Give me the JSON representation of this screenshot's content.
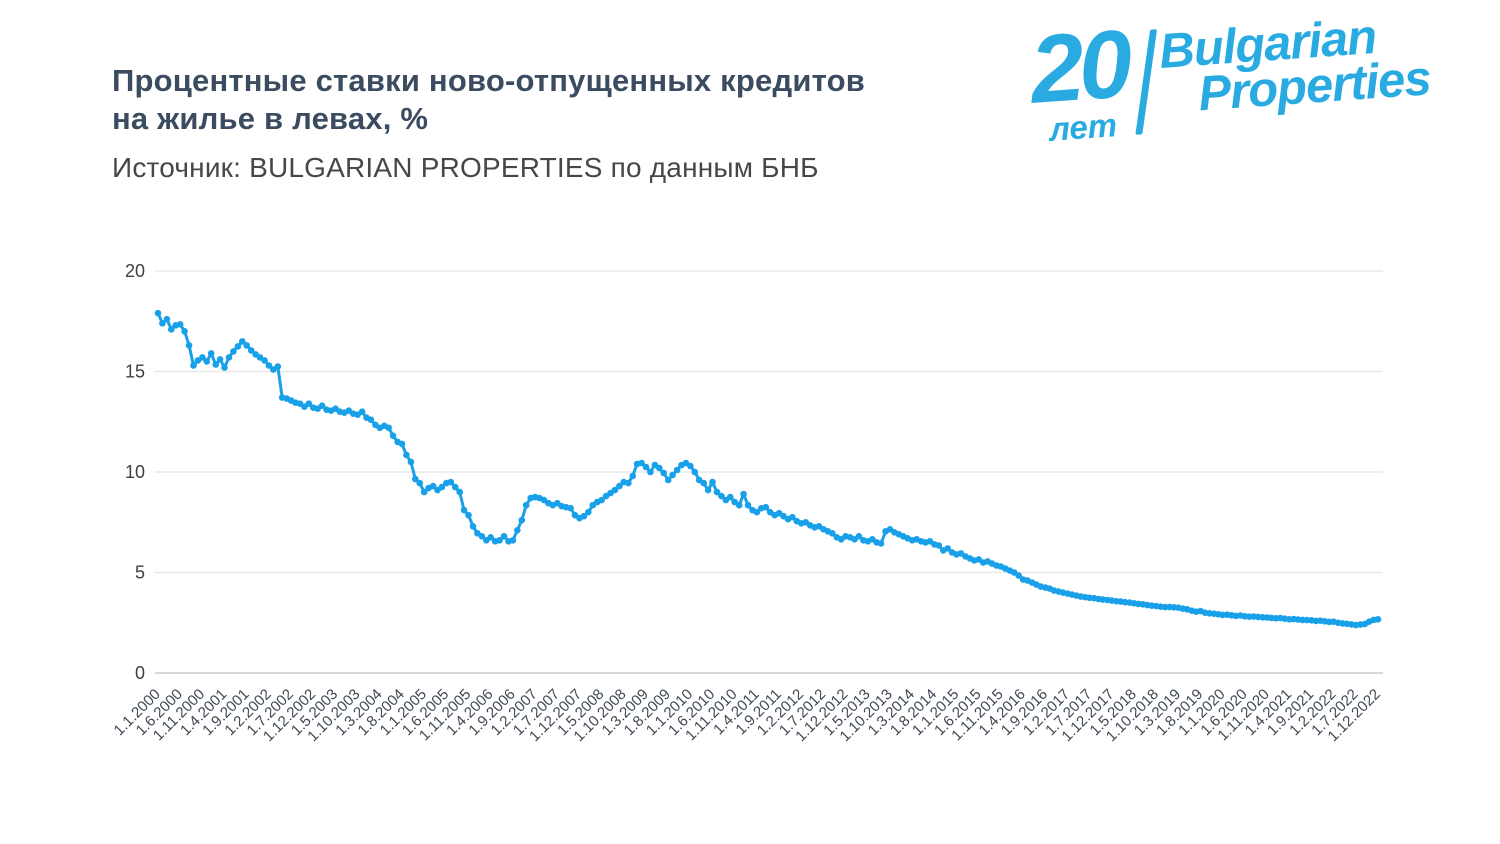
{
  "header": {
    "title_line1": "Процентные ставки ново-отпущенных кредитов",
    "title_line2": "на жилье в левах, %",
    "source": "Источник: BULGARIAN PROPERTIES по данным БНБ"
  },
  "logo": {
    "number": "20",
    "years_word": "лет",
    "brand_line1": "Bulgarian",
    "brand_line2": "Properties",
    "color": "#29abe2"
  },
  "chart_data": {
    "type": "line",
    "title": "Процентные ставки ново-отпущенных кредитов на жилье в левах, %",
    "xlabel": "",
    "ylabel": "",
    "x_frequency": "monthly",
    "x_start": "1.1.2000",
    "x_end": "1.12.2022",
    "x_tick_every_n_months": 5,
    "x_tick_labels": [
      "1.1.2000",
      "1.6.2000",
      "1.11.2000",
      "1.4.2001",
      "1.9.2001",
      "1.2.2002",
      "1.7.2002",
      "1.12.2002",
      "1.5.2003",
      "1.10.2003",
      "1.3.2004",
      "1.8.2004",
      "1.1.2005",
      "1.6.2005",
      "1.11.2005",
      "1.4.2006",
      "1.9.2006",
      "1.2.2007",
      "1.7.2007",
      "1.12.2007",
      "1.5.2008",
      "1.10.2008",
      "1.3.2009",
      "1.8.2009",
      "1.1.2010",
      "1.6.2010",
      "1.11.2010",
      "1.4.2011",
      "1.9.2011",
      "1.2.2012",
      "1.7.2012",
      "1.12.2012",
      "1.5.2013",
      "1.10.2013",
      "1.3.2014",
      "1.8.2014",
      "1.1.2015",
      "1.6.2015",
      "1.11.2015",
      "1.4.2016",
      "1.9.2016",
      "1.2.2017",
      "1.7.2017",
      "1.12.2017",
      "1.5.2018",
      "1.10.2018",
      "1.3.2019",
      "1.8.2019",
      "1.1.2020",
      "1.6.2020",
      "1.11.2020",
      "1.4.2021",
      "1.9.2021",
      "1.2.2022",
      "1.7.2022",
      "1.12.2022"
    ],
    "y_ticks": [
      0,
      5,
      10,
      15,
      20
    ],
    "ylim": [
      0,
      20
    ],
    "grid": "horizontal",
    "legend": "none",
    "line_color": "#18a0e8",
    "marker": "circle",
    "values": [
      17.9,
      17.4,
      17.6,
      17.1,
      17.3,
      17.35,
      17.0,
      16.3,
      15.3,
      15.55,
      15.7,
      15.5,
      15.9,
      15.35,
      15.6,
      15.2,
      15.7,
      16.0,
      16.25,
      16.5,
      16.3,
      16.05,
      15.85,
      15.7,
      15.55,
      15.3,
      15.1,
      15.25,
      13.7,
      13.65,
      13.55,
      13.45,
      13.4,
      13.25,
      13.4,
      13.2,
      13.15,
      13.3,
      13.1,
      13.05,
      13.15,
      13.0,
      12.95,
      13.05,
      12.9,
      12.85,
      13.0,
      12.7,
      12.6,
      12.35,
      12.2,
      12.3,
      12.2,
      11.8,
      11.5,
      11.4,
      10.85,
      10.5,
      9.65,
      9.45,
      9.0,
      9.2,
      9.3,
      9.1,
      9.25,
      9.45,
      9.5,
      9.25,
      9.0,
      8.1,
      7.85,
      7.3,
      6.95,
      6.8,
      6.6,
      6.75,
      6.55,
      6.6,
      6.8,
      6.55,
      6.6,
      7.1,
      7.6,
      8.35,
      8.7,
      8.75,
      8.7,
      8.6,
      8.45,
      8.35,
      8.45,
      8.3,
      8.25,
      8.2,
      7.85,
      7.7,
      7.8,
      8.0,
      8.35,
      8.5,
      8.6,
      8.8,
      8.95,
      9.1,
      9.3,
      9.5,
      9.45,
      9.8,
      10.4,
      10.45,
      10.25,
      10.0,
      10.35,
      10.2,
      9.95,
      9.6,
      9.85,
      10.1,
      10.35,
      10.45,
      10.3,
      10.0,
      9.6,
      9.45,
      9.1,
      9.5,
      9.0,
      8.8,
      8.6,
      8.75,
      8.5,
      8.35,
      8.9,
      8.35,
      8.1,
      8.0,
      8.2,
      8.25,
      8.0,
      7.85,
      7.95,
      7.8,
      7.65,
      7.75,
      7.55,
      7.45,
      7.5,
      7.35,
      7.25,
      7.3,
      7.15,
      7.05,
      6.95,
      6.75,
      6.65,
      6.8,
      6.75,
      6.65,
      6.8,
      6.6,
      6.55,
      6.65,
      6.5,
      6.45,
      7.05,
      7.15,
      7.0,
      6.9,
      6.8,
      6.7,
      6.6,
      6.65,
      6.55,
      6.5,
      6.55,
      6.4,
      6.35,
      6.1,
      6.2,
      6.0,
      5.9,
      5.95,
      5.8,
      5.7,
      5.6,
      5.65,
      5.5,
      5.55,
      5.45,
      5.35,
      5.3,
      5.2,
      5.1,
      5.0,
      4.85,
      4.65,
      4.6,
      4.5,
      4.4,
      4.3,
      4.25,
      4.2,
      4.1,
      4.05,
      4.0,
      3.95,
      3.9,
      3.85,
      3.8,
      3.77,
      3.74,
      3.72,
      3.68,
      3.65,
      3.63,
      3.6,
      3.57,
      3.55,
      3.52,
      3.5,
      3.47,
      3.44,
      3.42,
      3.38,
      3.35,
      3.33,
      3.3,
      3.28,
      3.28,
      3.27,
      3.25,
      3.2,
      3.17,
      3.1,
      3.05,
      3.08,
      3.0,
      2.97,
      2.95,
      2.92,
      2.89,
      2.9,
      2.87,
      2.84,
      2.86,
      2.82,
      2.8,
      2.81,
      2.79,
      2.77,
      2.76,
      2.74,
      2.72,
      2.73,
      2.7,
      2.67,
      2.68,
      2.66,
      2.64,
      2.63,
      2.62,
      2.59,
      2.6,
      2.57,
      2.54,
      2.55,
      2.5,
      2.47,
      2.45,
      2.42,
      2.39,
      2.41,
      2.44,
      2.55,
      2.64,
      2.67
    ]
  }
}
